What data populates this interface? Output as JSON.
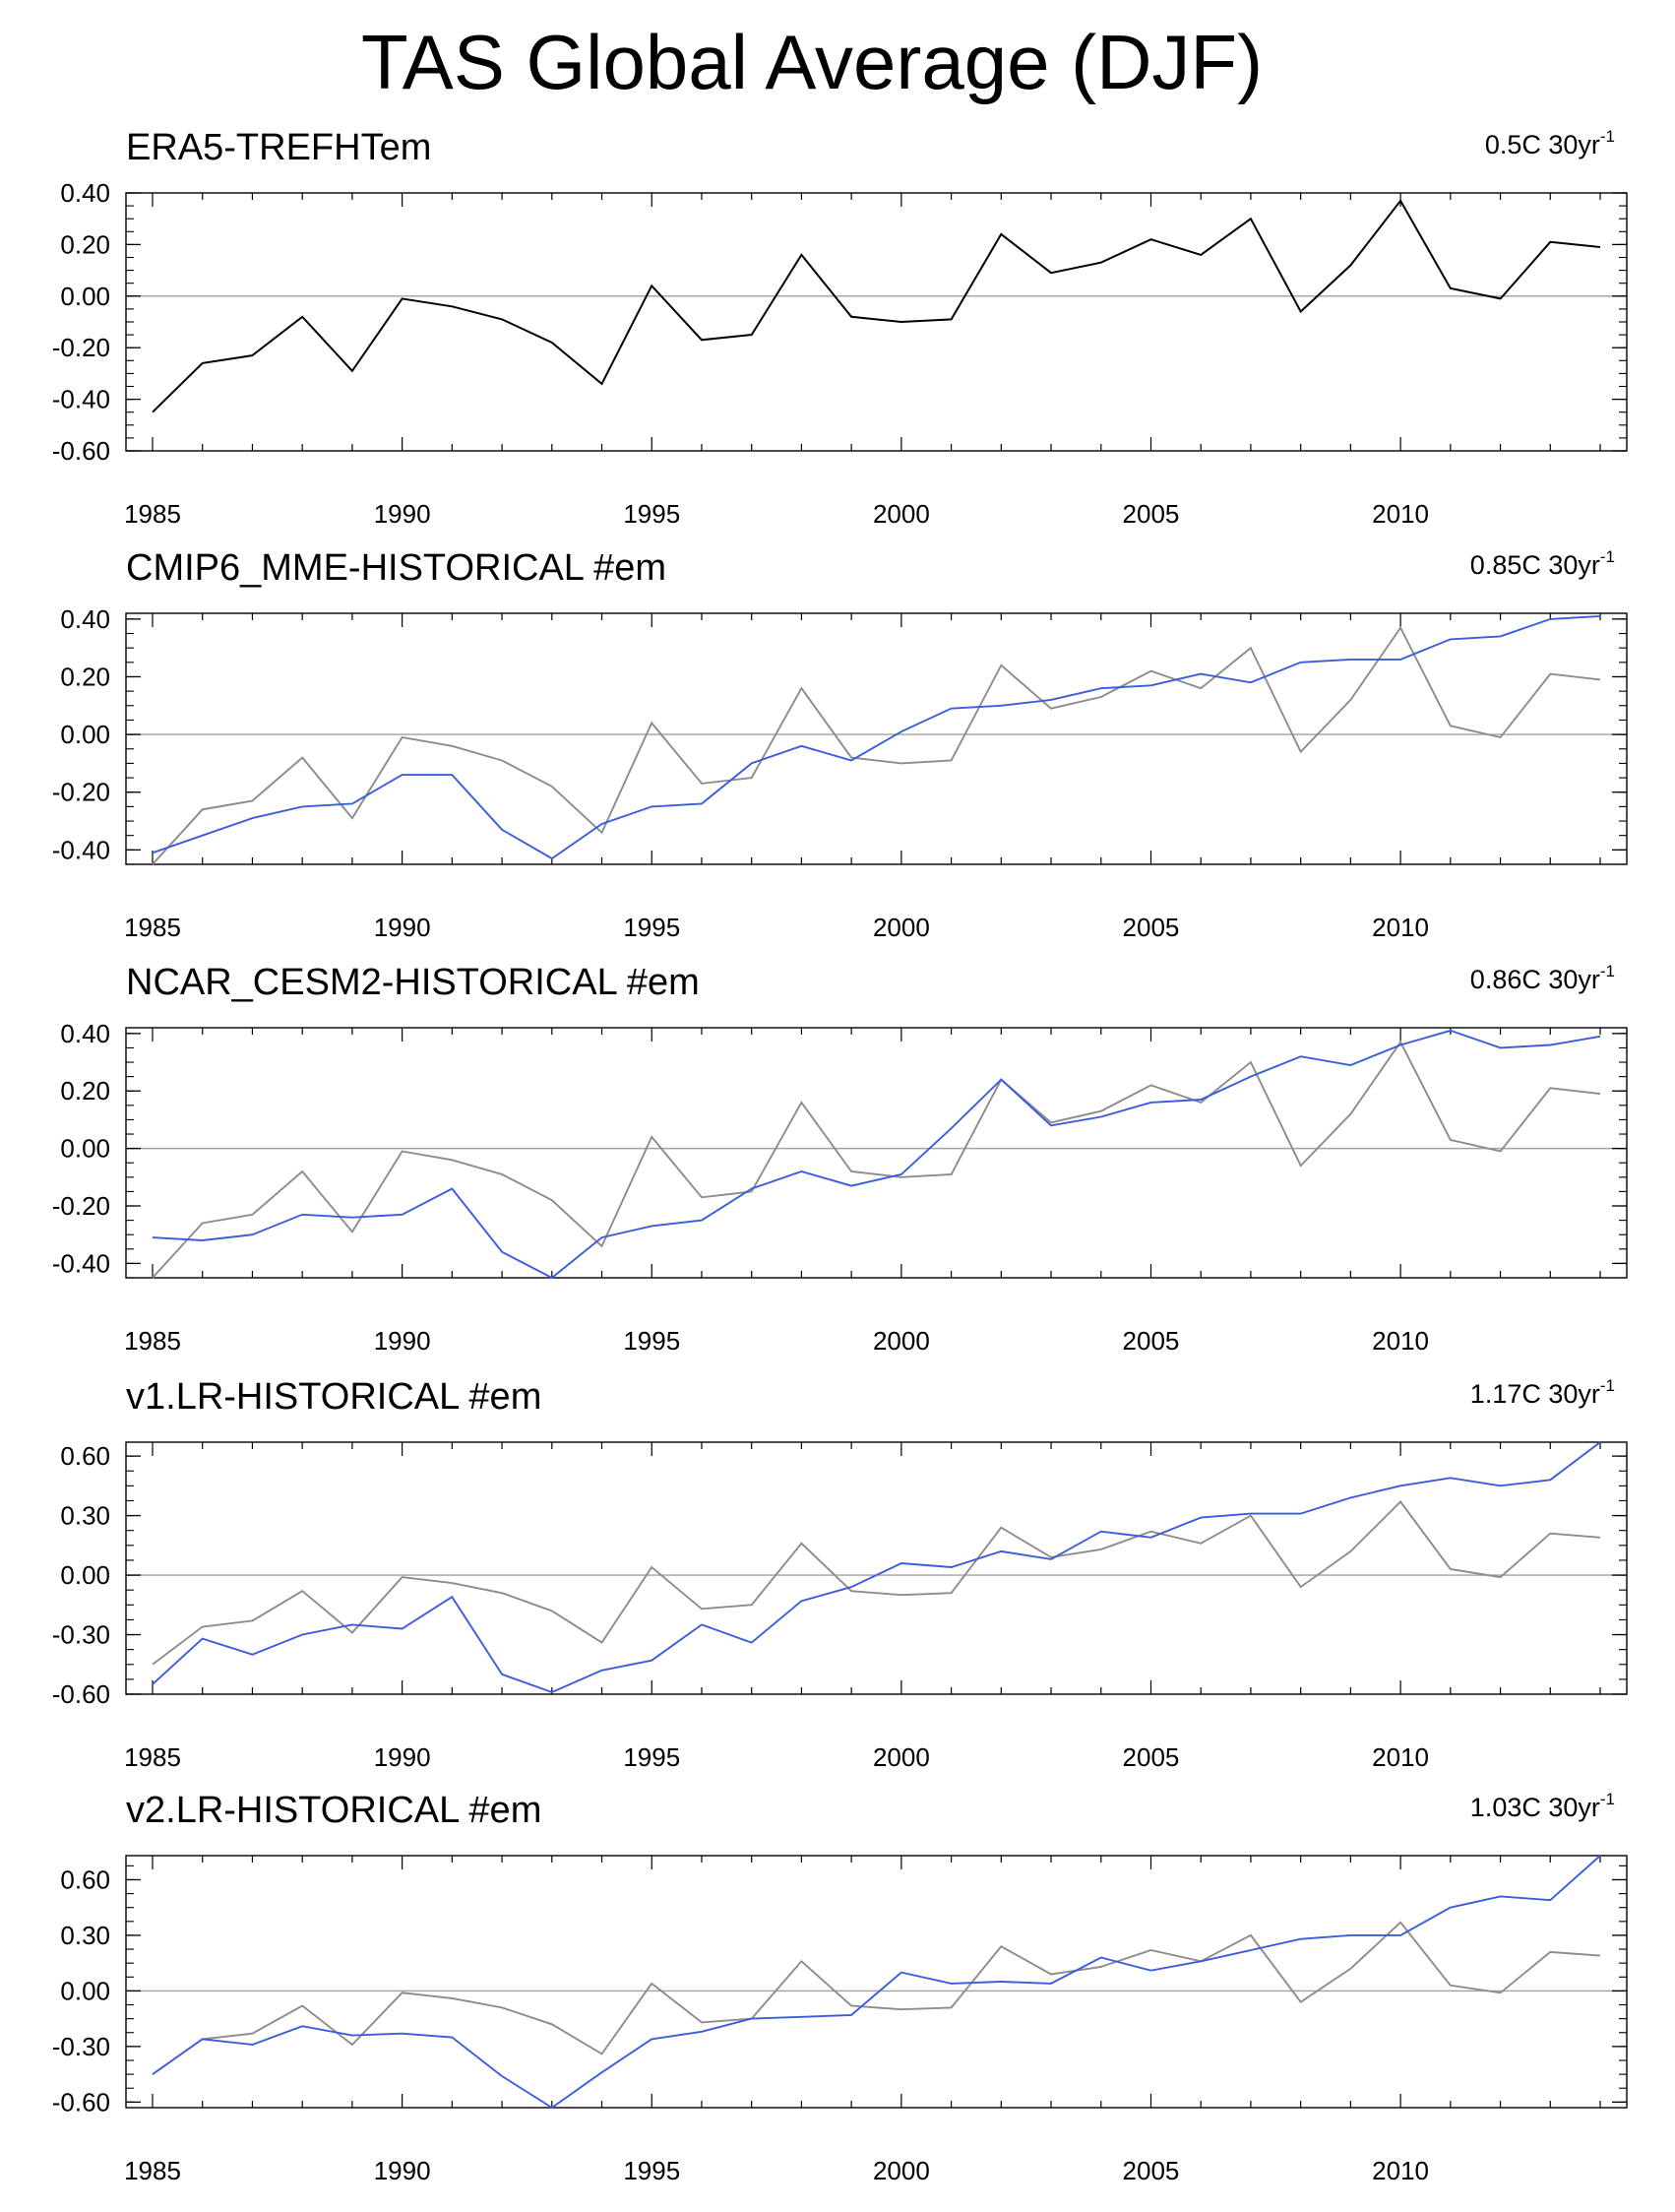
{
  "title": "TAS Global Average (DJF)",
  "colors": {
    "observed": "#000000",
    "reference": "#8c8c8c",
    "model": "#3b5ddc",
    "zero_line": "#a0a0a0",
    "axis": "#000000"
  },
  "chart_data": [
    {
      "type": "line",
      "title": "ERA5-TREFHTem",
      "trend_value": "0.5C 30yr",
      "trend_exp": "-1",
      "x": [
        1985,
        1986,
        1987,
        1988,
        1989,
        1990,
        1991,
        1992,
        1993,
        1994,
        1995,
        1996,
        1997,
        1998,
        1999,
        2000,
        2001,
        2002,
        2003,
        2004,
        2005,
        2006,
        2007,
        2008,
        2009,
        2010,
        2011,
        2012,
        2013,
        2014
      ],
      "xlim": [
        1985,
        2014
      ],
      "x_ticks": [
        1985,
        1990,
        1995,
        2000,
        2005,
        2010
      ],
      "ylim": [
        -0.6,
        0.4
      ],
      "y_ticks": [
        "0.40",
        "0.20",
        "0.00",
        "-0.20",
        "-0.40",
        "-0.60"
      ],
      "series": [
        {
          "name": "ERA5",
          "role": "observed",
          "values": [
            -0.45,
            -0.26,
            -0.23,
            -0.08,
            -0.29,
            -0.01,
            -0.04,
            -0.09,
            -0.18,
            -0.34,
            0.04,
            -0.17,
            -0.15,
            0.16,
            -0.08,
            -0.1,
            -0.09,
            0.24,
            0.09,
            0.13,
            0.22,
            0.16,
            0.3,
            -0.06,
            0.12,
            0.37,
            0.03,
            -0.01,
            0.21,
            0.19
          ]
        }
      ]
    },
    {
      "type": "line",
      "title": "CMIP6_MME-HISTORICAL  #em",
      "trend_value": "0.85C 30yr",
      "trend_exp": "-1",
      "x": [
        1985,
        1986,
        1987,
        1988,
        1989,
        1990,
        1991,
        1992,
        1993,
        1994,
        1995,
        1996,
        1997,
        1998,
        1999,
        2000,
        2001,
        2002,
        2003,
        2004,
        2005,
        2006,
        2007,
        2008,
        2009,
        2010,
        2011,
        2012,
        2013,
        2014
      ],
      "xlim": [
        1985,
        2014
      ],
      "x_ticks": [
        1985,
        1990,
        1995,
        2000,
        2005,
        2010
      ],
      "ylim": [
        -0.45,
        0.42
      ],
      "y_ticks": [
        "0.40",
        "0.20",
        "0.00",
        "-0.20",
        "-0.40"
      ],
      "series": [
        {
          "name": "ERA5",
          "role": "reference",
          "values": [
            -0.45,
            -0.26,
            -0.23,
            -0.08,
            -0.29,
            -0.01,
            -0.04,
            -0.09,
            -0.18,
            -0.34,
            0.04,
            -0.17,
            -0.15,
            0.16,
            -0.08,
            -0.1,
            -0.09,
            0.24,
            0.09,
            0.13,
            0.22,
            0.16,
            0.3,
            -0.06,
            0.12,
            0.37,
            0.03,
            -0.01,
            0.21,
            0.19
          ]
        },
        {
          "name": "CMIP6_MME",
          "role": "model",
          "values": [
            -0.41,
            -0.35,
            -0.29,
            -0.25,
            -0.24,
            -0.14,
            -0.14,
            -0.33,
            -0.43,
            -0.31,
            -0.25,
            -0.24,
            -0.1,
            -0.04,
            -0.09,
            0.01,
            0.09,
            0.1,
            0.12,
            0.16,
            0.17,
            0.21,
            0.18,
            0.25,
            0.26,
            0.26,
            0.33,
            0.34,
            0.4,
            0.41
          ]
        }
      ]
    },
    {
      "type": "line",
      "title": "NCAR_CESM2-HISTORICAL  #em",
      "trend_value": "0.86C 30yr",
      "trend_exp": "-1",
      "x": [
        1985,
        1986,
        1987,
        1988,
        1989,
        1990,
        1991,
        1992,
        1993,
        1994,
        1995,
        1996,
        1997,
        1998,
        1999,
        2000,
        2001,
        2002,
        2003,
        2004,
        2005,
        2006,
        2007,
        2008,
        2009,
        2010,
        2011,
        2012,
        2013,
        2014
      ],
      "xlim": [
        1985,
        2014
      ],
      "x_ticks": [
        1985,
        1990,
        1995,
        2000,
        2005,
        2010
      ],
      "ylim": [
        -0.45,
        0.42
      ],
      "y_ticks": [
        "0.40",
        "0.20",
        "0.00",
        "-0.20",
        "-0.40"
      ],
      "series": [
        {
          "name": "ERA5",
          "role": "reference",
          "values": [
            -0.45,
            -0.26,
            -0.23,
            -0.08,
            -0.29,
            -0.01,
            -0.04,
            -0.09,
            -0.18,
            -0.34,
            0.04,
            -0.17,
            -0.15,
            0.16,
            -0.08,
            -0.1,
            -0.09,
            0.24,
            0.09,
            0.13,
            0.22,
            0.16,
            0.3,
            -0.06,
            0.12,
            0.37,
            0.03,
            -0.01,
            0.21,
            0.19
          ]
        },
        {
          "name": "NCAR_CESM2",
          "role": "model",
          "values": [
            -0.31,
            -0.32,
            -0.3,
            -0.23,
            -0.24,
            -0.23,
            -0.14,
            -0.36,
            -0.45,
            -0.31,
            -0.27,
            -0.25,
            -0.14,
            -0.08,
            -0.13,
            -0.09,
            0.07,
            0.24,
            0.08,
            0.11,
            0.16,
            0.17,
            0.25,
            0.32,
            0.29,
            0.36,
            0.41,
            0.35,
            0.36,
            0.39
          ]
        }
      ]
    },
    {
      "type": "line",
      "title": "v1.LR-HISTORICAL  #em",
      "trend_value": "1.17C 30yr",
      "trend_exp": "-1",
      "x": [
        1985,
        1986,
        1987,
        1988,
        1989,
        1990,
        1991,
        1992,
        1993,
        1994,
        1995,
        1996,
        1997,
        1998,
        1999,
        2000,
        2001,
        2002,
        2003,
        2004,
        2005,
        2006,
        2007,
        2008,
        2009,
        2010,
        2011,
        2012,
        2013,
        2014
      ],
      "xlim": [
        1985,
        2014
      ],
      "x_ticks": [
        1985,
        1990,
        1995,
        2000,
        2005,
        2010
      ],
      "ylim": [
        -0.6,
        0.67
      ],
      "y_ticks": [
        "0.60",
        "0.30",
        "0.00",
        "-0.30",
        "-0.60"
      ],
      "series": [
        {
          "name": "ERA5",
          "role": "reference",
          "values": [
            -0.45,
            -0.26,
            -0.23,
            -0.08,
            -0.29,
            -0.01,
            -0.04,
            -0.09,
            -0.18,
            -0.34,
            0.04,
            -0.17,
            -0.15,
            0.16,
            -0.08,
            -0.1,
            -0.09,
            0.24,
            0.09,
            0.13,
            0.22,
            0.16,
            0.3,
            -0.06,
            0.12,
            0.37,
            0.03,
            -0.01,
            0.21,
            0.19
          ]
        },
        {
          "name": "v1.LR",
          "role": "model",
          "values": [
            -0.55,
            -0.32,
            -0.4,
            -0.3,
            -0.25,
            -0.27,
            -0.11,
            -0.5,
            -0.59,
            -0.48,
            -0.43,
            -0.25,
            -0.34,
            -0.13,
            -0.06,
            0.06,
            0.04,
            0.12,
            0.08,
            0.22,
            0.19,
            0.29,
            0.31,
            0.31,
            0.39,
            0.45,
            0.49,
            0.45,
            0.48,
            0.67
          ]
        }
      ]
    },
    {
      "type": "line",
      "title": "v2.LR-HISTORICAL  #em",
      "trend_value": "1.03C 30yr",
      "trend_exp": "-1",
      "x": [
        1985,
        1986,
        1987,
        1988,
        1989,
        1990,
        1991,
        1992,
        1993,
        1994,
        1995,
        1996,
        1997,
        1998,
        1999,
        2000,
        2001,
        2002,
        2003,
        2004,
        2005,
        2006,
        2007,
        2008,
        2009,
        2010,
        2011,
        2012,
        2013,
        2014
      ],
      "xlim": [
        1985,
        2014
      ],
      "x_ticks": [
        1985,
        1990,
        1995,
        2000,
        2005,
        2010
      ],
      "ylim": [
        -0.63,
        0.73
      ],
      "y_ticks": [
        "0.60",
        "0.30",
        "0.00",
        "-0.30",
        "-0.60"
      ],
      "series": [
        {
          "name": "ERA5",
          "role": "reference",
          "values": [
            -0.45,
            -0.26,
            -0.23,
            -0.08,
            -0.29,
            -0.01,
            -0.04,
            -0.09,
            -0.18,
            -0.34,
            0.04,
            -0.17,
            -0.15,
            0.16,
            -0.08,
            -0.1,
            -0.09,
            0.24,
            0.09,
            0.13,
            0.22,
            0.16,
            0.3,
            -0.06,
            0.12,
            0.37,
            0.03,
            -0.01,
            0.21,
            0.19
          ]
        },
        {
          "name": "v2.LR",
          "role": "model",
          "values": [
            -0.45,
            -0.26,
            -0.29,
            -0.19,
            -0.24,
            -0.23,
            -0.25,
            -0.46,
            -0.63,
            -0.44,
            -0.26,
            -0.22,
            -0.15,
            -0.14,
            -0.13,
            0.1,
            0.04,
            0.05,
            0.04,
            0.18,
            0.11,
            0.16,
            0.22,
            0.28,
            0.3,
            0.3,
            0.45,
            0.51,
            0.49,
            0.73
          ]
        }
      ]
    }
  ]
}
